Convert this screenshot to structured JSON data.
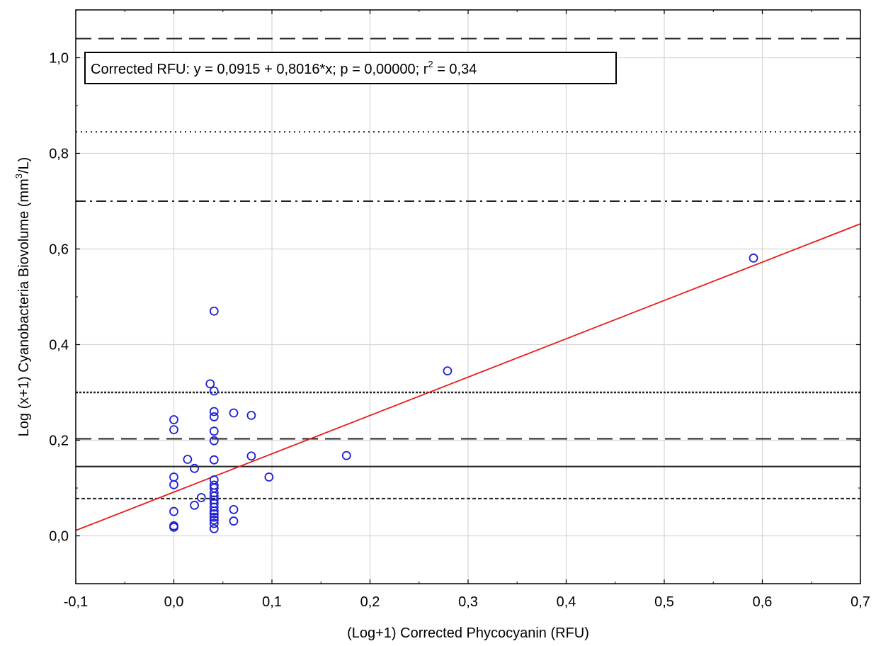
{
  "chart_data": {
    "type": "scatter",
    "xlabel": "(Log+1) Corrected Phycocyanin (RFU)",
    "ylabel_main": "Log (x+1) Cyanobacteria Biovolume (mm",
    "ylabel_sup": "3",
    "ylabel_tail": "/L)",
    "xlim": [
      -0.1,
      0.7
    ],
    "ylim": [
      -0.1,
      1.1
    ],
    "xticks": [
      "-0,1",
      "0,0",
      "0,1",
      "0,2",
      "0,3",
      "0,4",
      "0,5",
      "0,6",
      "0,7"
    ],
    "xtick_values": [
      -0.1,
      0.0,
      0.1,
      0.2,
      0.3,
      0.4,
      0.5,
      0.6,
      0.7
    ],
    "yticks": [
      "0,0",
      "0,2",
      "0,4",
      "0,6",
      "0,8",
      "1,0"
    ],
    "ytick_values": [
      0.0,
      0.2,
      0.4,
      0.6,
      0.8,
      1.0
    ],
    "grid": true,
    "regression": {
      "intercept": 0.0915,
      "slope": 0.8016,
      "color": "#e8191a"
    },
    "annotation": {
      "prefix": "Corrected RFU:   y = 0,0915 + 0,8016*x; p = 0,00000; r",
      "sup": "2",
      "suffix": " = 0,34"
    },
    "reference_lines": [
      {
        "y": 1.04,
        "style": "long-dash"
      },
      {
        "y": 0.845,
        "style": "dotted"
      },
      {
        "y": 0.7,
        "style": "dash-dot"
      },
      {
        "y": 0.3,
        "style": "fine-dot"
      },
      {
        "y": 0.203,
        "style": "long-dash"
      },
      {
        "y": 0.145,
        "style": "solid"
      },
      {
        "y": 0.078,
        "style": "short-dash"
      }
    ],
    "point_color": "#1f1fd6",
    "points": [
      [
        0.0,
        0.243
      ],
      [
        0.0,
        0.222
      ],
      [
        0.0,
        0.123
      ],
      [
        0.0,
        0.107
      ],
      [
        0.0,
        0.051
      ],
      [
        0.0,
        0.021
      ],
      [
        0.0,
        0.018
      ],
      [
        0.014,
        0.16
      ],
      [
        0.021,
        0.141
      ],
      [
        0.021,
        0.064
      ],
      [
        0.028,
        0.08
      ],
      [
        0.037,
        0.318
      ],
      [
        0.041,
        0.47
      ],
      [
        0.041,
        0.303
      ],
      [
        0.041,
        0.26
      ],
      [
        0.041,
        0.249
      ],
      [
        0.041,
        0.219
      ],
      [
        0.041,
        0.199
      ],
      [
        0.041,
        0.159
      ],
      [
        0.041,
        0.117
      ],
      [
        0.041,
        0.106
      ],
      [
        0.041,
        0.1
      ],
      [
        0.041,
        0.09
      ],
      [
        0.041,
        0.083
      ],
      [
        0.041,
        0.075
      ],
      [
        0.041,
        0.068
      ],
      [
        0.041,
        0.06
      ],
      [
        0.041,
        0.052
      ],
      [
        0.041,
        0.046
      ],
      [
        0.041,
        0.039
      ],
      [
        0.041,
        0.033
      ],
      [
        0.041,
        0.026
      ],
      [
        0.041,
        0.015
      ],
      [
        0.061,
        0.257
      ],
      [
        0.061,
        0.055
      ],
      [
        0.061,
        0.031
      ],
      [
        0.079,
        0.252
      ],
      [
        0.079,
        0.167
      ],
      [
        0.097,
        0.123
      ],
      [
        0.176,
        0.168
      ],
      [
        0.279,
        0.345
      ],
      [
        0.591,
        0.581
      ]
    ]
  }
}
